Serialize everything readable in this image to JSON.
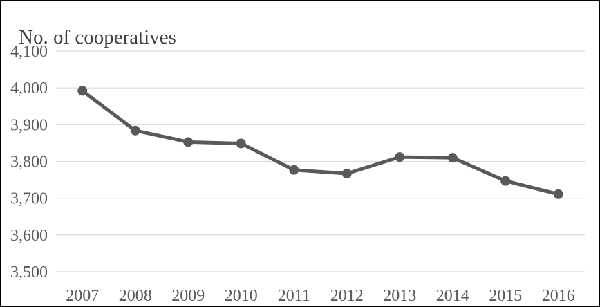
{
  "chart_data": {
    "type": "line",
    "title": "",
    "xlabel": "",
    "ylabel": "No. of cooperatives",
    "categories": [
      "2007",
      "2008",
      "2009",
      "2010",
      "2011",
      "2012",
      "2013",
      "2014",
      "2015",
      "2016"
    ],
    "series": [
      {
        "values": [
          3992,
          3884,
          3853,
          3849,
          3777,
          3767,
          3812,
          3810,
          3747,
          3711
        ]
      }
    ],
    "ylim": [
      3500,
      4100
    ],
    "yticks": [
      3500,
      3600,
      3700,
      3800,
      3900,
      4000,
      4100
    ],
    "ytick_labels": [
      "3,500",
      "3,600",
      "3,700",
      "3,800",
      "3,900",
      "4,000",
      "4,100"
    ],
    "grid": "horizontal",
    "legend": "none",
    "colors": {
      "line": "#595959",
      "grid": "#d9d9d9",
      "text": "#595959"
    }
  }
}
